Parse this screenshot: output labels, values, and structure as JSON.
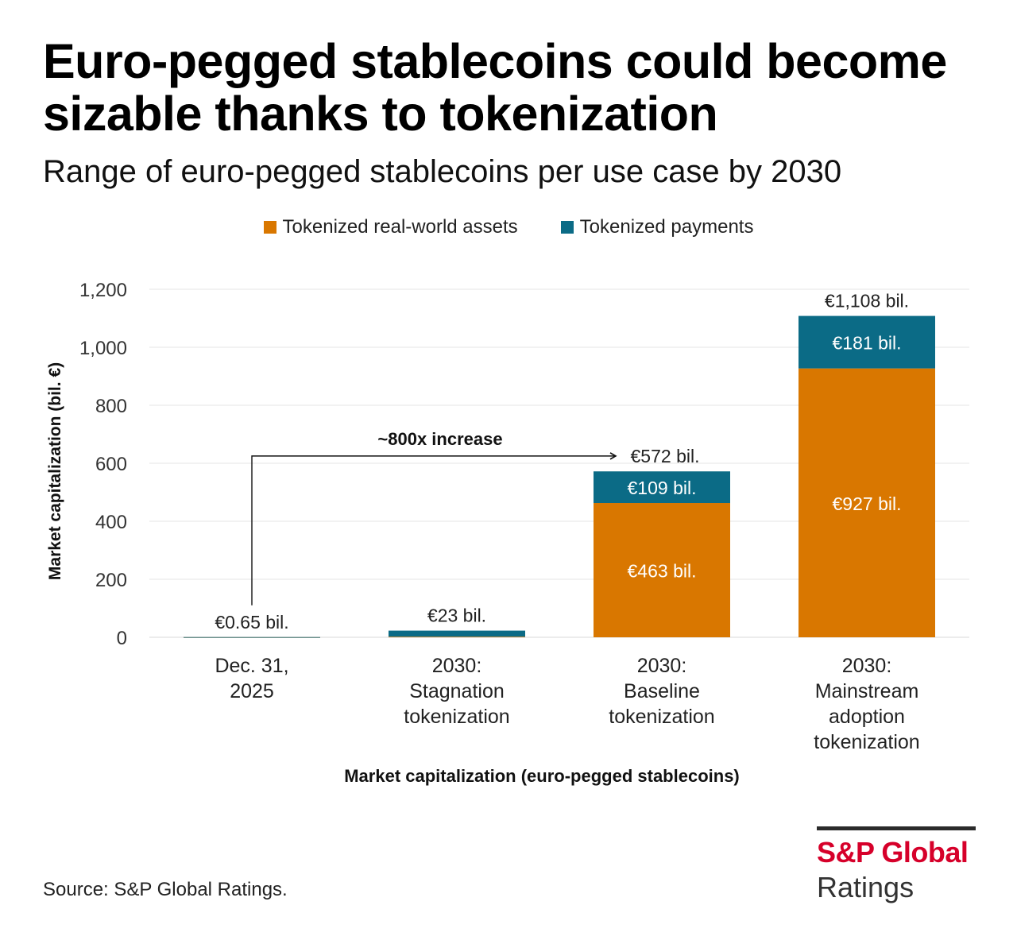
{
  "header": {
    "title": "Euro-pegged stablecoins could become sizable thanks to tokenization",
    "subtitle": "Range of euro-pegged stablecoins per use case by 2030"
  },
  "colors": {
    "rwa": "#d97700",
    "payments": "#0b6b86",
    "grid": "#e6e6e6",
    "axis": "#444444"
  },
  "chart_data": {
    "type": "bar",
    "stacked": true,
    "categories": [
      [
        "Dec. 31,",
        "2025"
      ],
      [
        "2030:",
        "Stagnation",
        "tokenization"
      ],
      [
        "2030:",
        "Baseline",
        "tokenization"
      ],
      [
        "2030:",
        "Mainstream",
        "adoption",
        "tokenization"
      ]
    ],
    "series": [
      {
        "name": "Tokenized real-world assets",
        "values": [
          0.3,
          2,
          463,
          927
        ],
        "labels": [
          "",
          "",
          "€463 bil.",
          "€927 bil."
        ]
      },
      {
        "name": "Tokenized payments",
        "values": [
          0.35,
          21,
          109,
          181
        ],
        "labels": [
          "",
          "",
          "€109 bil.",
          "€181 bil."
        ]
      }
    ],
    "totals": [
      0.65,
      23,
      572,
      1108
    ],
    "total_labels": [
      "€0.65 bil.",
      "€23 bil.",
      "€572 bil.",
      "€1,108 bil."
    ],
    "ylabel": "Market capitalization (bil. €)",
    "xlabel": "Market capitalization (euro-pegged stablecoins)",
    "ylim": [
      0,
      1200
    ],
    "yticks": [
      0,
      200,
      400,
      600,
      800,
      1000,
      1200
    ],
    "ytick_labels": [
      "0",
      "200",
      "400",
      "600",
      "800",
      "1,000",
      "1,200"
    ],
    "annotation": {
      "text": "~800x increase",
      "from_category": 0,
      "to_category": 2,
      "level": 625
    },
    "legend_position": "top-center",
    "grid": true
  },
  "source": "Source: S&P Global Ratings.",
  "logo": {
    "line1": "S&P Global",
    "line2": "Ratings"
  }
}
